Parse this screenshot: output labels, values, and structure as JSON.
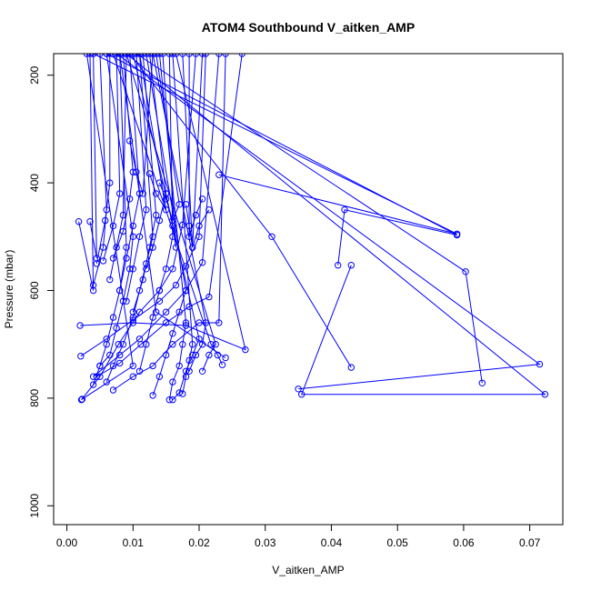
{
  "chart_data": {
    "type": "line",
    "title": "ATOM4 Southbound V_aitken_AMP",
    "xlabel": "V_aitken_AMP",
    "ylabel": "Pressure (mbar)",
    "xlim": [
      -0.002,
      0.075
    ],
    "ylim": [
      1035,
      160
    ],
    "y_reversed": true,
    "x_ticks": [
      0.0,
      0.01,
      0.02,
      0.03,
      0.04,
      0.05,
      0.06,
      0.07
    ],
    "x_tick_labels": [
      "0.00",
      "0.01",
      "0.02",
      "0.03",
      "0.04",
      "0.05",
      "0.06",
      "0.07"
    ],
    "y_ticks": [
      200,
      400,
      600,
      800,
      1000
    ],
    "y_tick_labels": [
      "200",
      "400",
      "600",
      "800",
      "1000"
    ],
    "grid": false,
    "colors": {
      "series": "#0000ff",
      "axis": "#000000",
      "background": "#ffffff"
    },
    "marker": "open-circle",
    "series": [
      {
        "points": [
          [
            0.0022,
            803
          ],
          [
            0.005,
            760
          ],
          [
            0.0078,
            700
          ],
          [
            0.011,
            640
          ],
          [
            0.014,
            600
          ],
          [
            0.016,
            560
          ],
          [
            0.0175,
            478
          ],
          [
            0.0195,
            160
          ]
        ]
      },
      {
        "points": [
          [
            0.0021,
            722
          ],
          [
            0.006,
            690
          ],
          [
            0.01,
            655
          ],
          [
            0.014,
            620
          ],
          [
            0.0165,
            590
          ],
          [
            0.018,
            555
          ],
          [
            0.02,
            500
          ],
          [
            0.021,
            160
          ]
        ]
      },
      {
        "points": [
          [
            0.004,
            760
          ],
          [
            0.008,
            720
          ],
          [
            0.011,
            690
          ],
          [
            0.015,
            640
          ],
          [
            0.018,
            600
          ],
          [
            0.0205,
            548
          ],
          [
            0.023,
            160
          ]
        ]
      },
      {
        "points": [
          [
            0.007,
            785
          ],
          [
            0.01,
            760
          ],
          [
            0.013,
            740
          ],
          [
            0.016,
            700
          ],
          [
            0.02,
            660
          ],
          [
            0.023,
            660
          ],
          [
            0.024,
            160
          ]
        ]
      },
      {
        "points": [
          [
            0.0045,
            760
          ],
          [
            0.008,
            735
          ],
          [
            0.0112,
            700
          ],
          [
            0.015,
            660
          ],
          [
            0.0185,
            630
          ],
          [
            0.0215,
            612
          ],
          [
            0.0265,
            160
          ]
        ]
      },
      {
        "points": [
          [
            0.004,
            775
          ],
          [
            0.005,
            740
          ],
          [
            0.006,
            700
          ],
          [
            0.007,
            650
          ],
          [
            0.008,
            600
          ],
          [
            0.009,
            520
          ],
          [
            0.008,
            160
          ]
        ]
      },
      {
        "points": [
          [
            0.005,
            740
          ],
          [
            0.0065,
            720
          ],
          [
            0.0075,
            670
          ],
          [
            0.0085,
            620
          ],
          [
            0.0095,
            560
          ],
          [
            0.01,
            500
          ],
          [
            0.006,
            160
          ]
        ]
      },
      {
        "points": [
          [
            0.006,
            770
          ],
          [
            0.007,
            740
          ],
          [
            0.0085,
            700
          ],
          [
            0.01,
            650
          ],
          [
            0.011,
            600
          ],
          [
            0.012,
            550
          ],
          [
            0.013,
            500
          ],
          [
            0.011,
            160
          ]
        ]
      },
      {
        "points": [
          [
            0.011,
            750
          ],
          [
            0.012,
            700
          ],
          [
            0.013,
            650
          ],
          [
            0.014,
            600
          ],
          [
            0.015,
            560
          ],
          [
            0.016,
            500
          ],
          [
            0.0155,
            160
          ]
        ]
      },
      {
        "points": [
          [
            0.013,
            795
          ],
          [
            0.014,
            760
          ],
          [
            0.015,
            720
          ],
          [
            0.016,
            680
          ],
          [
            0.017,
            640
          ],
          [
            0.018,
            600
          ],
          [
            0.012,
            160
          ]
        ]
      },
      {
        "points": [
          [
            0.0155,
            803
          ],
          [
            0.016,
            770
          ],
          [
            0.017,
            740
          ],
          [
            0.0175,
            700
          ],
          [
            0.018,
            660
          ],
          [
            0.014,
            160
          ]
        ]
      },
      {
        "points": [
          [
            0.016,
            803
          ],
          [
            0.017,
            790
          ],
          [
            0.018,
            750
          ],
          [
            0.019,
            720
          ],
          [
            0.02,
            690
          ],
          [
            0.01,
            160
          ]
        ]
      },
      {
        "points": [
          [
            0.0175,
            792
          ],
          [
            0.018,
            760
          ],
          [
            0.0185,
            730
          ],
          [
            0.019,
            700
          ],
          [
            0.016,
            160
          ]
        ]
      },
      {
        "points": [
          [
            0.0185,
            750
          ],
          [
            0.0195,
            720
          ],
          [
            0.0205,
            700
          ],
          [
            0.021,
            660
          ],
          [
            0.013,
            160
          ]
        ]
      },
      {
        "points": [
          [
            0.0205,
            750
          ],
          [
            0.0215,
            720
          ],
          [
            0.0225,
            700
          ],
          [
            0.009,
            160
          ]
        ]
      },
      {
        "points": [
          [
            0.0235,
            738
          ],
          [
            0.0228,
            720
          ],
          [
            0.0218,
            700
          ],
          [
            0.007,
            160
          ]
        ]
      },
      {
        "points": [
          [
            0.0023,
            802
          ],
          [
            0.01,
            740
          ],
          [
            0.003,
            160
          ]
        ]
      },
      {
        "points": [
          [
            0.002,
            665
          ],
          [
            0.01,
            660
          ],
          [
            0.018,
            665
          ],
          [
            0.027,
            710
          ],
          [
            0.0165,
            160
          ]
        ]
      },
      {
        "points": [
          [
            0.0018,
            472
          ],
          [
            0.004,
            600
          ],
          [
            0.0035,
            160
          ]
        ]
      },
      {
        "points": [
          [
            0.0035,
            472
          ],
          [
            0.0045,
            540
          ],
          [
            0.004,
            160
          ]
        ]
      },
      {
        "points": [
          [
            0.004,
            590
          ],
          [
            0.0055,
            520
          ],
          [
            0.006,
            450
          ],
          [
            0.005,
            160
          ]
        ]
      },
      {
        "points": [
          [
            0.0045,
            550
          ],
          [
            0.0058,
            470
          ],
          [
            0.0065,
            400
          ],
          [
            0.0065,
            160
          ]
        ]
      },
      {
        "points": [
          [
            0.0055,
            545
          ],
          [
            0.007,
            480
          ],
          [
            0.008,
            420
          ],
          [
            0.0075,
            160
          ]
        ]
      },
      {
        "points": [
          [
            0.0065,
            580
          ],
          [
            0.0075,
            520
          ],
          [
            0.0085,
            460
          ],
          [
            0.009,
            160
          ]
        ]
      },
      {
        "points": [
          [
            0.007,
            540
          ],
          [
            0.0085,
            490
          ],
          [
            0.0095,
            430
          ],
          [
            0.01,
            380
          ],
          [
            0.0085,
            160
          ]
        ]
      },
      {
        "points": [
          [
            0.008,
            600
          ],
          [
            0.009,
            540
          ],
          [
            0.01,
            480
          ],
          [
            0.011,
            420
          ],
          [
            0.0095,
            160
          ]
        ]
      },
      {
        "points": [
          [
            0.009,
            620
          ],
          [
            0.01,
            560
          ],
          [
            0.011,
            500
          ],
          [
            0.012,
            450
          ],
          [
            0.0105,
            160
          ]
        ]
      },
      {
        "points": [
          [
            0.01,
            640
          ],
          [
            0.0115,
            580
          ],
          [
            0.0125,
            520
          ],
          [
            0.0135,
            460
          ],
          [
            0.0115,
            160
          ]
        ]
      },
      {
        "points": [
          [
            0.012,
            560
          ],
          [
            0.013,
            520
          ],
          [
            0.014,
            470
          ],
          [
            0.015,
            420
          ],
          [
            0.0125,
            160
          ]
        ]
      },
      {
        "points": [
          [
            0.014,
            400
          ],
          [
            0.015,
            430
          ],
          [
            0.016,
            470
          ],
          [
            0.017,
            440
          ],
          [
            0.0135,
            160
          ]
        ]
      },
      {
        "points": [
          [
            0.015,
            420
          ],
          [
            0.016,
            480
          ],
          [
            0.0165,
            520
          ],
          [
            0.0145,
            160
          ]
        ]
      },
      {
        "points": [
          [
            0.018,
            440
          ],
          [
            0.0185,
            480
          ],
          [
            0.019,
            520
          ],
          [
            0.0175,
            160
          ]
        ]
      },
      {
        "points": [
          [
            0.0205,
            430
          ],
          [
            0.0195,
            460
          ],
          [
            0.0185,
            500
          ],
          [
            0.0185,
            160
          ]
        ]
      },
      {
        "points": [
          [
            0.0215,
            450
          ],
          [
            0.02,
            480
          ],
          [
            0.019,
            520
          ],
          [
            0.0205,
            160
          ]
        ]
      },
      {
        "points": [
          [
            0.0095,
            322
          ],
          [
            0.0105,
            380
          ],
          [
            0.0115,
            420
          ],
          [
            0.013,
            160
          ]
        ]
      },
      {
        "points": [
          [
            0.0125,
            383
          ],
          [
            0.0135,
            420
          ],
          [
            0.015,
            450
          ],
          [
            0.011,
            160
          ]
        ]
      },
      {
        "points": [
          [
            0.023,
            385
          ],
          [
            0.059,
            495
          ],
          [
            0.004,
            160
          ]
        ]
      },
      {
        "points": [
          [
            0.041,
            553
          ],
          [
            0.042,
            450
          ],
          [
            0.059,
            497
          ],
          [
            0.006,
            160
          ]
        ]
      },
      {
        "points": [
          [
            0.043,
            553
          ],
          [
            0.0355,
            793
          ],
          [
            0.0723,
            793
          ],
          [
            0.009,
            160
          ]
        ]
      },
      {
        "points": [
          [
            0.035,
            783
          ],
          [
            0.0715,
            737
          ],
          [
            0.0075,
            160
          ]
        ]
      },
      {
        "points": [
          [
            0.043,
            743
          ],
          [
            0.031,
            500
          ],
          [
            0.0095,
            160
          ]
        ]
      },
      {
        "points": [
          [
            0.0628,
            772
          ],
          [
            0.0603,
            565
          ],
          [
            0.0105,
            160
          ]
        ]
      },
      {
        "points": [
          [
            0.024,
            725
          ],
          [
            0.0135,
            640
          ],
          [
            0.008,
            160
          ]
        ]
      }
    ]
  }
}
